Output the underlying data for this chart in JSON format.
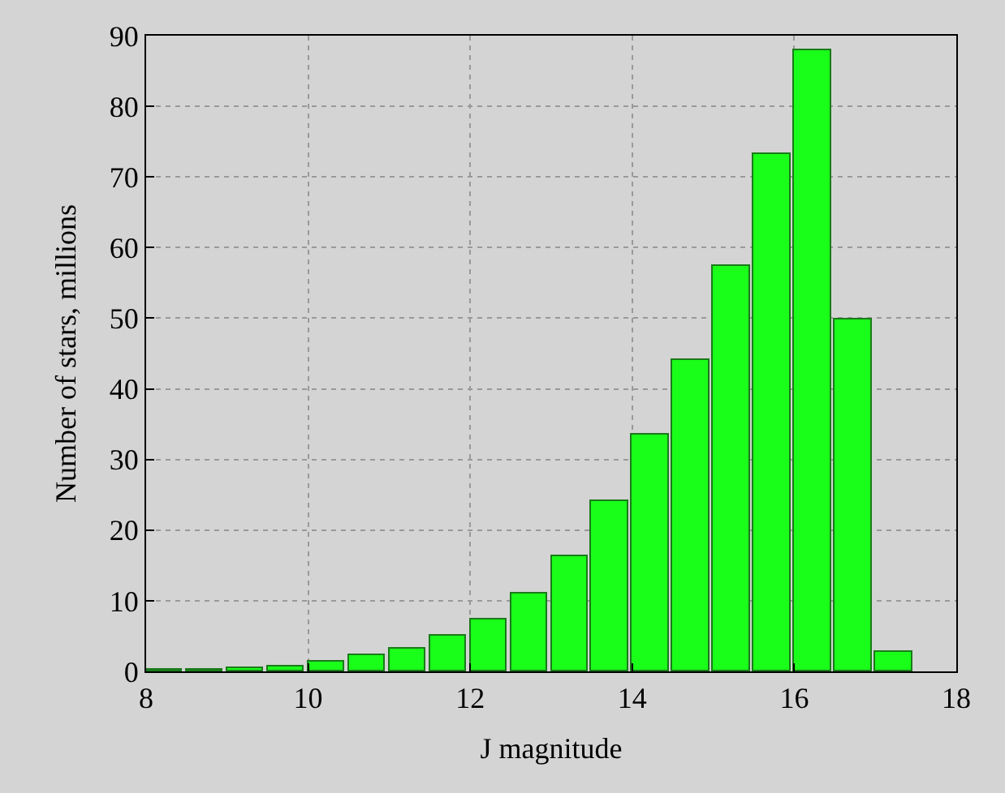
{
  "chart_data": {
    "type": "histogram",
    "xlabel": "J magnitude",
    "ylabel": "Number of stars, millions",
    "bins": [
      8,
      8.5,
      9,
      9.5,
      10,
      10.5,
      11,
      11.5,
      12,
      12.5,
      13,
      13.5,
      14,
      14.5,
      15,
      15.5,
      16,
      16.5,
      17,
      17.5
    ],
    "values": [
      0.2,
      0.3,
      0.5,
      0.8,
      1.3,
      2.2,
      3.2,
      5,
      7.3,
      11,
      16.3,
      24,
      33.5,
      44,
      57.3,
      73.2,
      88,
      49.8,
      2.7
    ],
    "color": "#1aff1a",
    "xlim": [
      8,
      18
    ],
    "xticks": [
      8,
      10,
      12,
      14,
      16,
      18
    ],
    "ylim": [
      0,
      90
    ],
    "yticks": [
      0,
      10,
      20,
      30,
      40,
      50,
      60,
      70,
      80,
      90
    ],
    "grid": true
  }
}
